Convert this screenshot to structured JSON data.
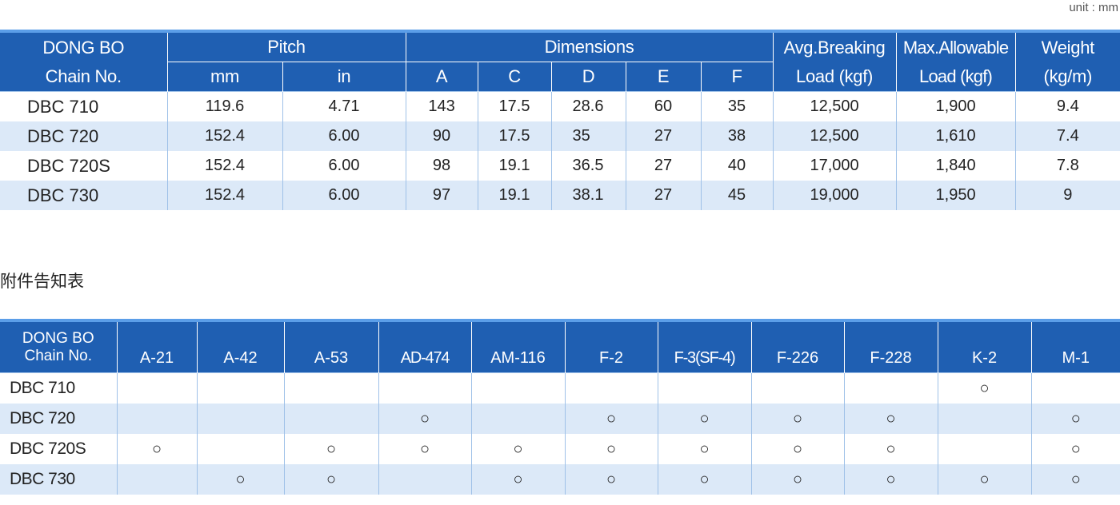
{
  "unit_label": "unit : mm",
  "spec_table": {
    "header_chain_line1": "DONG BO",
    "header_chain_line2": "Chain No.",
    "header_pitch": "Pitch",
    "header_pitch_mm": "mm",
    "header_pitch_in": "in",
    "header_dimensions": "Dimensions",
    "dim_cols": [
      "A",
      "C",
      "D",
      "E",
      "F"
    ],
    "header_breaking_line1": "Avg.Breaking",
    "header_breaking_line2": "Load (kgf)",
    "header_allowable_line1": "Max.Allowable",
    "header_allowable_line2": "Load (kgf)",
    "header_weight_line1": "Weight",
    "header_weight_line2": "(kg/m)",
    "rows": [
      {
        "chain": "DBC  710",
        "mm": "119.6",
        "in": "4.71",
        "A": "143",
        "C": "17.5",
        "D": "28.6",
        "E": "60",
        "F": "35",
        "breaking": "12,500",
        "allowable": "1,900",
        "weight": "9.4"
      },
      {
        "chain": "DBC  720",
        "mm": "152.4",
        "in": "6.00",
        "A": "90",
        "C": "17.5",
        "D": "35",
        "E": "27",
        "F": "38",
        "breaking": "12,500",
        "allowable": "1,610",
        "weight": "7.4"
      },
      {
        "chain": "DBC  720S",
        "mm": "152.4",
        "in": "6.00",
        "A": "98",
        "C": "19.1",
        "D": "36.5",
        "E": "27",
        "F": "40",
        "breaking": "17,000",
        "allowable": "1,840",
        "weight": "7.8"
      },
      {
        "chain": "DBC  730",
        "mm": "152.4",
        "in": "6.00",
        "A": "97",
        "C": "19.1",
        "D": "38.1",
        "E": "27",
        "F": "45",
        "breaking": "19,000",
        "allowable": "1,950",
        "weight": "9"
      }
    ]
  },
  "attachment_title": "附件告知表",
  "attachment_table": {
    "header_chain_line1": "DONG BO",
    "header_chain_line2": "Chain No.",
    "columns": [
      "A-21",
      "A-42",
      "A-53",
      "AD-474",
      "AM-116",
      "F-2",
      "F-3(SF-4)",
      "F-226",
      "F-228",
      "K-2",
      "M-1"
    ],
    "mark_symbol": "○",
    "rows": [
      {
        "chain": "DBC 710",
        "available": [
          false,
          false,
          false,
          false,
          false,
          false,
          false,
          false,
          false,
          true,
          false
        ]
      },
      {
        "chain": "DBC 720",
        "available": [
          false,
          false,
          false,
          true,
          false,
          true,
          true,
          true,
          true,
          false,
          true
        ]
      },
      {
        "chain": "DBC 720S",
        "available": [
          true,
          false,
          true,
          true,
          true,
          true,
          true,
          true,
          true,
          false,
          true
        ]
      },
      {
        "chain": "DBC 730",
        "available": [
          false,
          true,
          true,
          false,
          true,
          true,
          true,
          true,
          true,
          true,
          true
        ]
      }
    ]
  }
}
